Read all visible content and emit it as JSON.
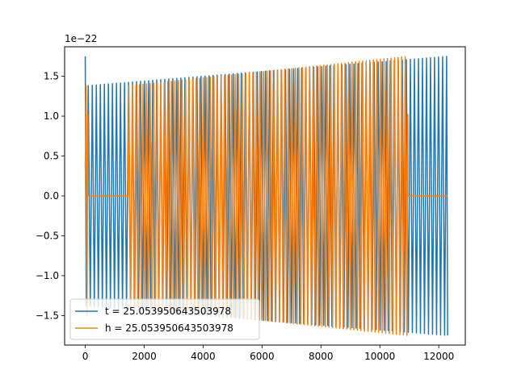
{
  "chart_data": {
    "type": "line",
    "title": "",
    "xlabel": "",
    "ylabel": "",
    "y_offset_label": "1e−22",
    "xlim": [
      -700,
      12900
    ],
    "ylim": [
      -1.87,
      1.87
    ],
    "x_ticks": [
      0,
      2000,
      4000,
      6000,
      8000,
      10000,
      12000
    ],
    "x_tick_labels": [
      "0",
      "2000",
      "4000",
      "6000",
      "8000",
      "10000",
      "12000"
    ],
    "y_ticks": [
      -1.5,
      -1.0,
      -0.5,
      0.0,
      0.5,
      1.0,
      1.5
    ],
    "y_tick_labels": [
      "−1.5",
      "−1.0",
      "−0.5",
      "0.0",
      "0.5",
      "1.0",
      "1.5"
    ],
    "grid": false,
    "legend_position": "lower-left",
    "series": [
      {
        "name": "t = 25.053950643503978",
        "color": "#1f77b4",
        "x_start": 0,
        "x_end": 12300,
        "amplitude_start": 1.38,
        "amplitude_end": 1.75,
        "first_value": 1.75,
        "num_cycles": 90
      },
      {
        "name": "h = 25.053950643503978",
        "color": "#ff7f0e",
        "x_start": 0,
        "x_end": 10950,
        "flat_segment": [
          100,
          1450
        ],
        "flat_value": 0.0,
        "tail_segment": [
          10950,
          12300
        ],
        "tail_value": 0.0,
        "amplitude_start": 1.38,
        "amplitude_end": 1.75,
        "num_cycles": 89
      }
    ]
  }
}
